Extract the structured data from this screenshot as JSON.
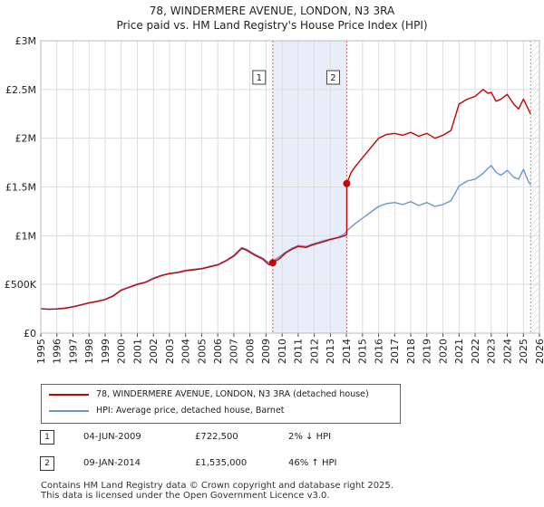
{
  "header": {
    "title": "78, WINDERMERE AVENUE, LONDON, N3 3RA",
    "subtitle": "Price paid vs. HM Land Registry's House Price Index (HPI)"
  },
  "chart_data": {
    "type": "line",
    "title": "78, WINDERMERE AVENUE, LONDON, N3 3RA",
    "subtitle": "Price paid vs. HM Land Registry's House Price Index (HPI)",
    "xlabel": "",
    "ylabel": "",
    "xlim": [
      1995,
      2026
    ],
    "ylim": [
      0,
      3000000
    ],
    "grid": true,
    "y_ticks": [
      {
        "value": 0,
        "label": "£0"
      },
      {
        "value": 500000,
        "label": "£500K"
      },
      {
        "value": 1000000,
        "label": "£1M"
      },
      {
        "value": 1500000,
        "label": "£1.5M"
      },
      {
        "value": 2000000,
        "label": "£2M"
      },
      {
        "value": 2500000,
        "label": "£2.5M"
      },
      {
        "value": 3000000,
        "label": "£3M"
      }
    ],
    "x_ticks": [
      1995,
      1996,
      1997,
      1998,
      1999,
      2000,
      2001,
      2002,
      2003,
      2004,
      2005,
      2006,
      2007,
      2008,
      2009,
      2010,
      2011,
      2012,
      2013,
      2014,
      2015,
      2016,
      2017,
      2018,
      2019,
      2020,
      2021,
      2022,
      2023,
      2024,
      2025,
      2026
    ],
    "series": [
      {
        "name": "78, WINDERMERE AVENUE, LONDON, N3 3RA (detached house)",
        "color": "#cc0000",
        "x": [
          1995.0,
          1995.5,
          1996.0,
          1996.5,
          1997.0,
          1997.5,
          1998.0,
          1998.5,
          1999.0,
          1999.5,
          2000.0,
          2000.5,
          2001.0,
          2001.5,
          2002.0,
          2002.5,
          2003.0,
          2003.5,
          2004.0,
          2004.5,
          2005.0,
          2005.5,
          2006.0,
          2006.5,
          2007.0,
          2007.5,
          2007.8,
          2008.3,
          2008.8,
          2009.2,
          2009.42,
          2009.8,
          2010.2,
          2010.6,
          2011.0,
          2011.5,
          2011.8,
          2012.2,
          2012.6,
          2013.0,
          2013.5,
          2013.9,
          2014.02,
          2014.02,
          2014.3,
          2014.6,
          2015.0,
          2015.5,
          2016.0,
          2016.5,
          2017.0,
          2017.5,
          2018.0,
          2018.5,
          2019.0,
          2019.5,
          2020.0,
          2020.5,
          2021.0,
          2021.5,
          2022.0,
          2022.5,
          2022.8,
          2023.0,
          2023.3,
          2023.6,
          2024.0,
          2024.4,
          2024.7,
          2025.0,
          2025.3,
          2025.45
        ],
        "values": [
          250000,
          245000,
          248000,
          255000,
          270000,
          290000,
          310000,
          325000,
          345000,
          380000,
          440000,
          470000,
          500000,
          520000,
          560000,
          590000,
          610000,
          620000,
          640000,
          650000,
          660000,
          680000,
          700000,
          740000,
          790000,
          870000,
          850000,
          800000,
          760000,
          700000,
          722500,
          760000,
          820000,
          860000,
          890000,
          880000,
          900000,
          920000,
          940000,
          960000,
          980000,
          1000000,
          1010000,
          1535000,
          1650000,
          1720000,
          1800000,
          1900000,
          2000000,
          2040000,
          2050000,
          2030000,
          2060000,
          2020000,
          2050000,
          2000000,
          2030000,
          2080000,
          2350000,
          2400000,
          2430000,
          2500000,
          2460000,
          2470000,
          2380000,
          2400000,
          2450000,
          2350000,
          2300000,
          2400000,
          2300000,
          2250000
        ],
        "points": [
          {
            "label": "1",
            "x": 2009.42,
            "value": 722500
          },
          {
            "label": "2",
            "x": 2014.02,
            "value": 1535000
          }
        ]
      },
      {
        "name": "HPI: Average price, detached house, Barnet",
        "color": "#6b96d3",
        "x": [
          1995.0,
          1995.5,
          1996.0,
          1996.5,
          1997.0,
          1997.5,
          1998.0,
          1998.5,
          1999.0,
          1999.5,
          2000.0,
          2000.5,
          2001.0,
          2001.5,
          2002.0,
          2002.5,
          2003.0,
          2003.5,
          2004.0,
          2004.5,
          2005.0,
          2005.5,
          2006.0,
          2006.5,
          2007.0,
          2007.5,
          2007.8,
          2008.3,
          2008.8,
          2009.2,
          2009.42,
          2009.8,
          2010.2,
          2010.6,
          2011.0,
          2011.5,
          2011.8,
          2012.2,
          2012.6,
          2013.0,
          2013.5,
          2013.9,
          2014.02,
          2014.3,
          2014.6,
          2015.0,
          2015.5,
          2016.0,
          2016.5,
          2017.0,
          2017.5,
          2018.0,
          2018.5,
          2019.0,
          2019.5,
          2020.0,
          2020.5,
          2021.0,
          2021.5,
          2022.0,
          2022.5,
          2022.8,
          2023.0,
          2023.3,
          2023.6,
          2024.0,
          2024.4,
          2024.7,
          2025.0,
          2025.3,
          2025.45
        ],
        "values": [
          250000,
          245000,
          250000,
          258000,
          272000,
          292000,
          312000,
          328000,
          348000,
          385000,
          445000,
          475000,
          505000,
          525000,
          565000,
          595000,
          615000,
          625000,
          645000,
          655000,
          665000,
          685000,
          705000,
          745000,
          800000,
          880000,
          860000,
          810000,
          770000,
          720000,
          738000,
          780000,
          830000,
          870000,
          900000,
          890000,
          910000,
          930000,
          950000,
          965000,
          985000,
          1020000,
          1050000,
          1090000,
          1130000,
          1180000,
          1240000,
          1300000,
          1330000,
          1340000,
          1320000,
          1350000,
          1310000,
          1340000,
          1300000,
          1320000,
          1360000,
          1510000,
          1560000,
          1580000,
          1640000,
          1690000,
          1720000,
          1650000,
          1620000,
          1670000,
          1600000,
          1580000,
          1680000,
          1560000,
          1520000
        ]
      }
    ],
    "shaded_region": {
      "from": 2009.42,
      "to": 2014.02
    },
    "vlines": [
      2009.42,
      2014.02,
      2025.45
    ]
  },
  "legend": {
    "entries": [
      {
        "label": "78, WINDERMERE AVENUE, LONDON, N3 3RA (detached house)",
        "color": "#cc0000"
      },
      {
        "label": "HPI: Average price, detached house, Barnet",
        "color": "#6b96d3"
      }
    ]
  },
  "transactions": [
    {
      "num": "1",
      "date": "04-JUN-2009",
      "price": "£722,500",
      "hpi": "2% ↓ HPI"
    },
    {
      "num": "2",
      "date": "09-JAN-2014",
      "price": "£1,535,000",
      "hpi": "46% ↑ HPI"
    }
  ],
  "footer": {
    "line1": "Contains HM Land Registry data © Crown copyright and database right 2025.",
    "line2": "This data is licensed under the Open Government Licence v3.0."
  }
}
